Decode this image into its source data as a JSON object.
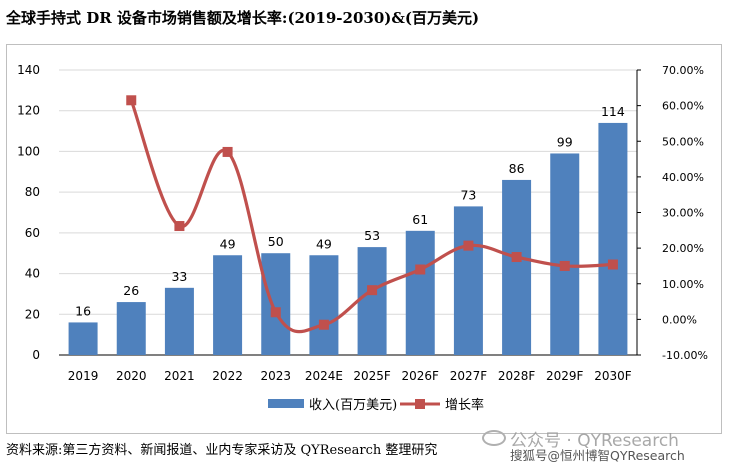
{
  "title": "全球手持式 DR 设备市场销售额及增长率:(2019-2030)&(百万美元)",
  "source": "资料来源:第三方资料、新闻报道、业内专家采访及 QYResearch 整理研究",
  "watermark": {
    "line1": "公众号 · QYResearch",
    "line2": "搜狐号@恒州博智QYResearch"
  },
  "colors": {
    "bar": "#4f81bd",
    "line": "#c0504d",
    "grid": "#d9d9d9",
    "axis": "#000000"
  },
  "chart_data": {
    "type": "bar",
    "categories": [
      "2019",
      "2020",
      "2021",
      "2022",
      "2023",
      "2024E",
      "2025F",
      "2026F",
      "2027F",
      "2028F",
      "2029F",
      "2030F"
    ],
    "series": [
      {
        "name": "收入(百万美元)",
        "type": "bar",
        "axis": "left",
        "values": [
          16,
          26,
          33,
          49,
          50,
          49,
          53,
          61,
          73,
          86,
          99,
          114
        ],
        "labels": [
          "16",
          "26",
          "33",
          "49",
          "50",
          "49",
          "53",
          "61",
          "73",
          "86",
          "99",
          "114"
        ]
      },
      {
        "name": "增长率",
        "type": "line",
        "axis": "right",
        "values": [
          null,
          61.5,
          26.2,
          47.0,
          2.0,
          -1.5,
          8.2,
          14.0,
          20.7,
          17.5,
          15.0,
          15.4
        ]
      }
    ],
    "ylim_left": [
      0,
      140
    ],
    "yticks_left": [
      "0",
      "20",
      "40",
      "60",
      "80",
      "100",
      "120",
      "140"
    ],
    "ylim_right": [
      -10,
      70
    ],
    "yticks_right": [
      "-10.00%",
      "0.00%",
      "10.00%",
      "20.00%",
      "30.00%",
      "40.00%",
      "50.00%",
      "60.00%",
      "70.00%"
    ],
    "grid": "horizontal",
    "legend_position": "bottom"
  }
}
